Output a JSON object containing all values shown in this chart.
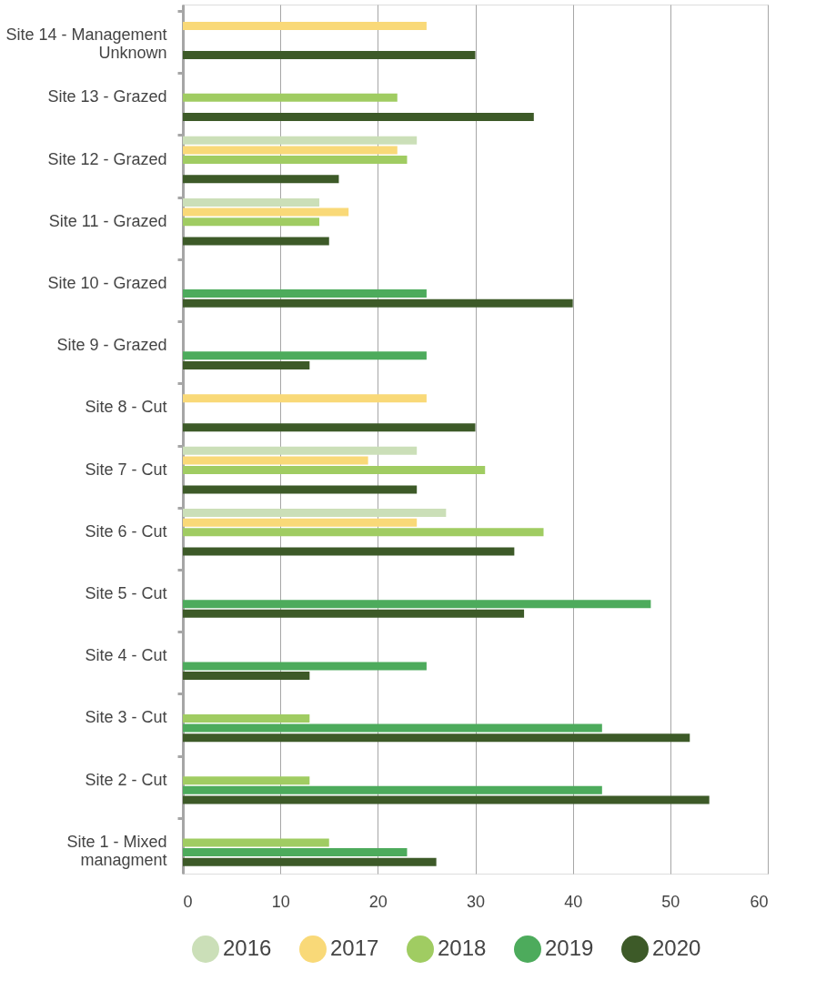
{
  "chart_data": {
    "type": "bar",
    "orientation": "horizontal",
    "categories": [
      "Site 14 - Management Unknown",
      "Site 13 - Grazed",
      "Site 12 - Grazed",
      "Site 11 - Grazed",
      "Site 10 - Grazed",
      "Site 9 - Grazed",
      "Site 8 - Cut",
      "Site 7 - Cut",
      "Site 6 - Cut",
      "Site 5 - Cut",
      "Site 4 - Cut",
      "Site 3 - Cut",
      "Site 2 - Cut",
      "Site 1 - Mixed managment"
    ],
    "series": [
      {
        "name": "2016",
        "color": "#cbdfb8",
        "values": [
          null,
          null,
          24,
          14,
          null,
          null,
          null,
          24,
          27,
          null,
          null,
          null,
          null,
          null
        ]
      },
      {
        "name": "2017",
        "color": "#f9d978",
        "values": [
          25,
          null,
          22,
          17,
          null,
          null,
          25,
          19,
          24,
          null,
          null,
          null,
          null,
          null
        ]
      },
      {
        "name": "2018",
        "color": "#a0cc62",
        "values": [
          null,
          22,
          23,
          14,
          null,
          null,
          null,
          31,
          37,
          null,
          null,
          13,
          13,
          15
        ]
      },
      {
        "name": "2019",
        "color": "#4dab5c",
        "values": [
          null,
          null,
          null,
          null,
          25,
          25,
          null,
          null,
          null,
          48,
          25,
          43,
          43,
          23
        ]
      },
      {
        "name": "2020",
        "color": "#3d5a28",
        "values": [
          30,
          36,
          16,
          15,
          40,
          13,
          30,
          24,
          34,
          35,
          13,
          52,
          54,
          26
        ]
      }
    ],
    "xlim": [
      0,
      60
    ],
    "xticks": [
      0,
      10,
      20,
      30,
      40,
      50,
      60
    ],
    "grid": "x",
    "legend": "bottom"
  }
}
